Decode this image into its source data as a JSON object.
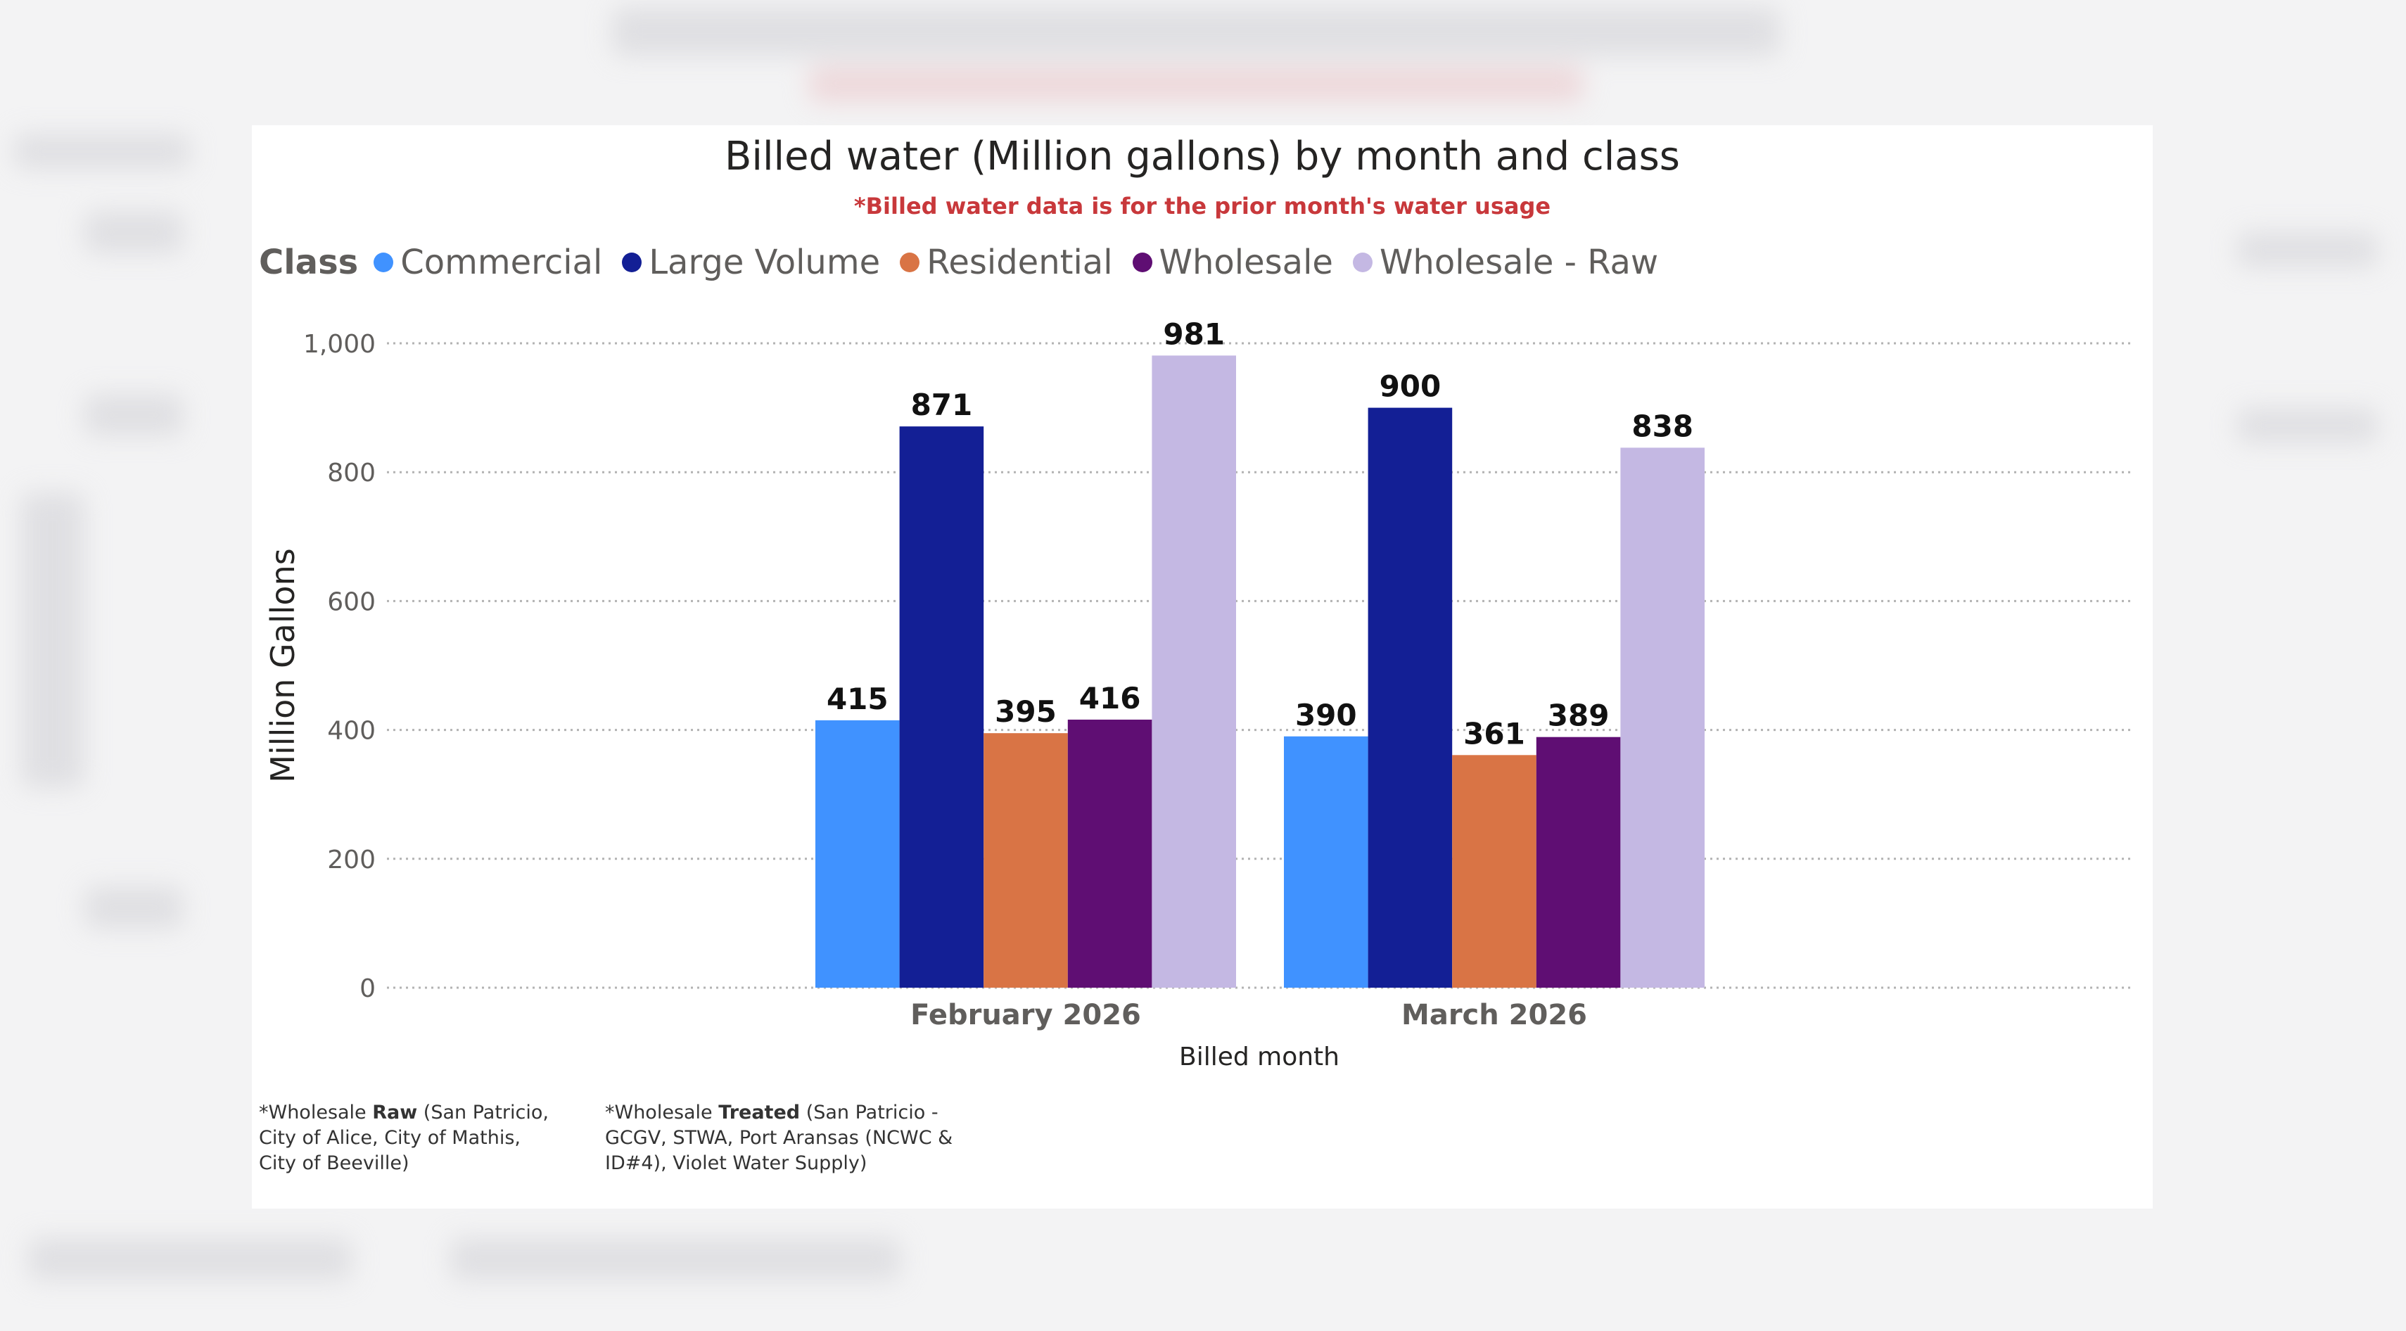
{
  "chart_data": {
    "type": "bar",
    "title": "Billed water (Million gallons) by month and class",
    "subtitle": "*Billed water data is for the prior month's water usage",
    "legend_title": "Class",
    "legend_placement": "top-left",
    "xlabel": "Billed month",
    "ylabel": "Million Gallons",
    "ylim": [
      0,
      1000
    ],
    "yticks": [
      {
        "value": 0,
        "label": "0"
      },
      {
        "value": 200,
        "label": "200"
      },
      {
        "value": 400,
        "label": "400"
      },
      {
        "value": 600,
        "label": "600"
      },
      {
        "value": 800,
        "label": "800"
      },
      {
        "value": 1000,
        "label": "1,000"
      }
    ],
    "grid": true,
    "categories": [
      "February 2026",
      "March 2026"
    ],
    "series": [
      {
        "name": "Commercial",
        "color": "#4092ff",
        "values": [
          415,
          390
        ]
      },
      {
        "name": "Large Volume",
        "color": "#131f95",
        "values": [
          871,
          900
        ]
      },
      {
        "name": "Residential",
        "color": "#d97445",
        "values": [
          395,
          361
        ]
      },
      {
        "name": "Wholesale",
        "color": "#5f0e73",
        "values": [
          416,
          389
        ]
      },
      {
        "name": "Wholesale - Raw",
        "color": "#c4b8e3",
        "values": [
          981,
          838
        ]
      }
    ]
  },
  "footnotes": {
    "raw": {
      "prefix": "*Wholesale ",
      "bold": "Raw",
      "rest": " (San Patricio, City of Alice, City of Mathis, City of Beeville)"
    },
    "treated": {
      "prefix": "*Wholesale ",
      "bold": "Treated",
      "rest": " (San Patricio - GCGV, STWA, Port Aransas (NCWC & ID#4), Violet Water Supply)"
    }
  }
}
